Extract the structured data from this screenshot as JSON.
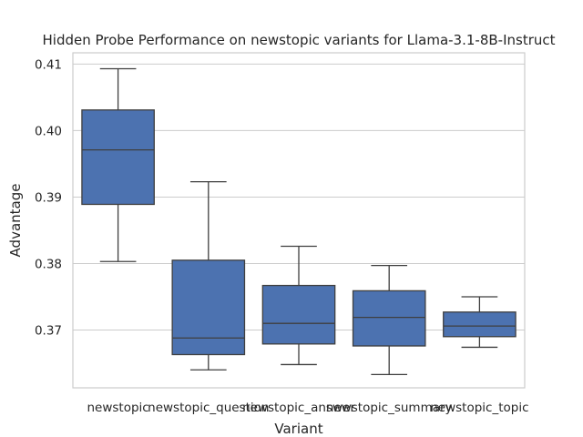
{
  "chart_data": {
    "type": "box",
    "title": "Hidden Probe Performance on newstopic variants for Llama-3.1-8B-Instruct",
    "xlabel": "Variant",
    "ylabel": "Advantage",
    "ylim": [
      0.3613,
      0.4117
    ],
    "yticks": [
      0.37,
      0.38,
      0.39,
      0.4,
      0.41
    ],
    "ytick_labels": [
      "0.37",
      "0.38",
      "0.39",
      "0.40",
      "0.41"
    ],
    "grid": "horizontal",
    "color": "#4c72b0",
    "categories": [
      "newstopic",
      "newstopic_question",
      "newstopic_answer",
      "newstopic_summary",
      "newstopic_topic"
    ],
    "boxes": [
      {
        "whislo": 0.3803,
        "q1": 0.3889,
        "med": 0.3971,
        "q3": 0.4031,
        "whishi": 0.4093
      },
      {
        "whislo": 0.364,
        "q1": 0.3663,
        "med": 0.3688,
        "q3": 0.3805,
        "whishi": 0.3923
      },
      {
        "whislo": 0.3648,
        "q1": 0.3679,
        "med": 0.371,
        "q3": 0.3767,
        "whishi": 0.3826
      },
      {
        "whislo": 0.3633,
        "q1": 0.3676,
        "med": 0.3719,
        "q3": 0.3759,
        "whishi": 0.3797
      },
      {
        "whislo": 0.3674,
        "q1": 0.369,
        "med": 0.3706,
        "q3": 0.3727,
        "whishi": 0.375
      }
    ]
  }
}
